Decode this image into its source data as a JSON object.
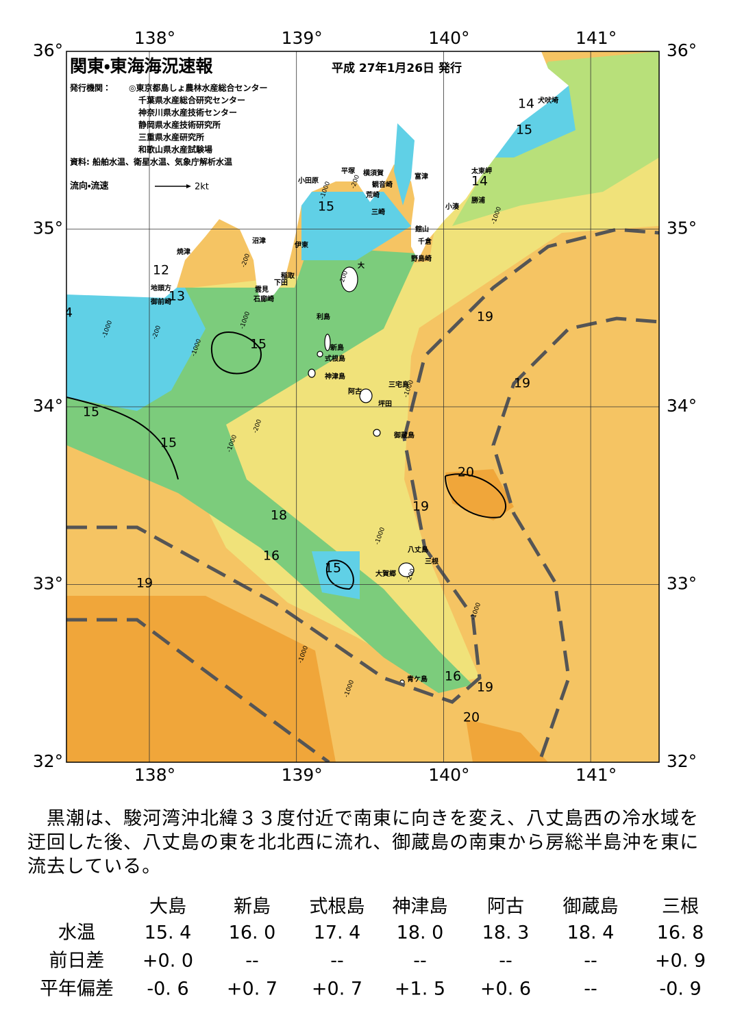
{
  "header": {
    "title": "関東・東海海況速報",
    "date": "平成 27年1月26日 発行",
    "issuer_label": "発行機関：",
    "issuers": [
      "◎東京都島しょ農林水産総合センター",
      "千葉県水産総合研究センター",
      "神奈川県水産技術センター",
      "静岡県水産技術研究所",
      "三重県水産研究所",
      "和歌山県水産試験場"
    ],
    "sources": "資料: 船舶水温、衛星水温、気象庁解析水温",
    "legend_label": "流向・流速",
    "legend_scale": "2kt"
  },
  "map": {
    "lon_ticks": [
      {
        "value": 138,
        "label": "138°"
      },
      {
        "value": 139,
        "label": "139°"
      },
      {
        "value": 140,
        "label": "140°"
      },
      {
        "value": 141,
        "label": "141°"
      }
    ],
    "lat_ticks": [
      {
        "value": 36,
        "label": "36°"
      },
      {
        "value": 35,
        "label": "35°"
      },
      {
        "value": 34,
        "label": "34°"
      },
      {
        "value": 33,
        "label": "33°"
      },
      {
        "value": 32,
        "label": "32°"
      }
    ],
    "contour_labels": [
      "14",
      "15",
      "14",
      "12",
      "13",
      "15",
      "15",
      "15",
      "15",
      "19",
      "19",
      "20",
      "19",
      "18",
      "16",
      "15",
      "19",
      "16",
      "19",
      "20",
      "4"
    ],
    "depth_labels": [
      "-200",
      "-1000",
      "-200",
      "-200",
      "-1000",
      "-200",
      "-1000",
      "-1000",
      "-200",
      "-1000",
      "-1000",
      "-1000",
      "-1000",
      "-1000",
      "-1000",
      "-200",
      "-1000"
    ],
    "places": [
      "犬吠埼",
      "太東岬",
      "勝浦",
      "小湊",
      "富津",
      "館山",
      "千倉",
      "野島崎",
      "横須賀",
      "観音崎",
      "平塚",
      "荒崎",
      "三崎",
      "小田原",
      "沼津",
      "伊東",
      "稲取",
      "下田",
      "雲見",
      "石廊崎",
      "焼津",
      "地頭方",
      "御前崎",
      "大",
      "利島",
      "新島",
      "式根島",
      "神津島",
      "三宅島",
      "阿古",
      "坪田",
      "御蔵島",
      "八丈島",
      "三根",
      "大賀郷",
      "青ケ島"
    ]
  },
  "summary": "黒潮は、駿河湾沖北緯３３度付近で南東に向きを変え、八丈島西の冷水域を迂回した後、八丈島の東を北北西に流れ、御蔵島の南東から房総半島沖を東に流去している。",
  "table": {
    "columns": [
      "大島",
      "新島",
      "式根島",
      "神津島",
      "阿古",
      "御蔵島",
      "三根"
    ],
    "rows": [
      [
        "水温",
        "15. 4",
        "16. 0",
        "17. 4",
        "18. 0",
        "18. 3",
        "18. 4",
        "16. 8"
      ],
      [
        "前日差",
        "+0. 0",
        "--",
        "--",
        "--",
        "--",
        "--",
        "+0. 9"
      ],
      [
        "平年偏差",
        "-0. 6",
        "+0. 7",
        "+0. 7",
        "+1. 5",
        "+0. 6",
        "--",
        "-0. 9"
      ]
    ]
  }
}
